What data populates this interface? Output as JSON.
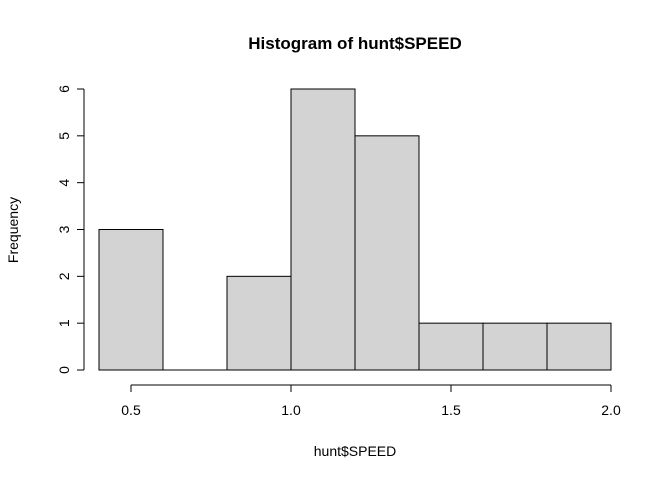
{
  "chart_data": {
    "type": "bar",
    "subtype": "histogram",
    "title": "Histogram of hunt$SPEED",
    "xlabel": "hunt$SPEED",
    "ylabel": "Frequency",
    "bins": [
      {
        "from": 0.4,
        "to": 0.6,
        "count": 3
      },
      {
        "from": 0.6,
        "to": 0.8,
        "count": 0
      },
      {
        "from": 0.8,
        "to": 1.0,
        "count": 2
      },
      {
        "from": 1.0,
        "to": 1.2,
        "count": 6
      },
      {
        "from": 1.2,
        "to": 1.4,
        "count": 5
      },
      {
        "from": 1.4,
        "to": 1.6,
        "count": 1
      },
      {
        "from": 1.6,
        "to": 1.8,
        "count": 1
      },
      {
        "from": 1.8,
        "to": 2.0,
        "count": 1
      }
    ],
    "xlim": [
      0.4,
      2.0
    ],
    "ylim": [
      0,
      6
    ],
    "x_ticks": [
      0.5,
      1.0,
      1.5,
      2.0
    ],
    "x_tick_labels": [
      "0.5",
      "1.0",
      "1.5",
      "2.0"
    ],
    "y_ticks": [
      0,
      1,
      2,
      3,
      4,
      5,
      6
    ],
    "y_tick_labels": [
      "0",
      "1",
      "2",
      "3",
      "4",
      "5",
      "6"
    ],
    "grid": false,
    "bar_fill": "#d3d3d3",
    "bar_stroke": "#000000"
  }
}
